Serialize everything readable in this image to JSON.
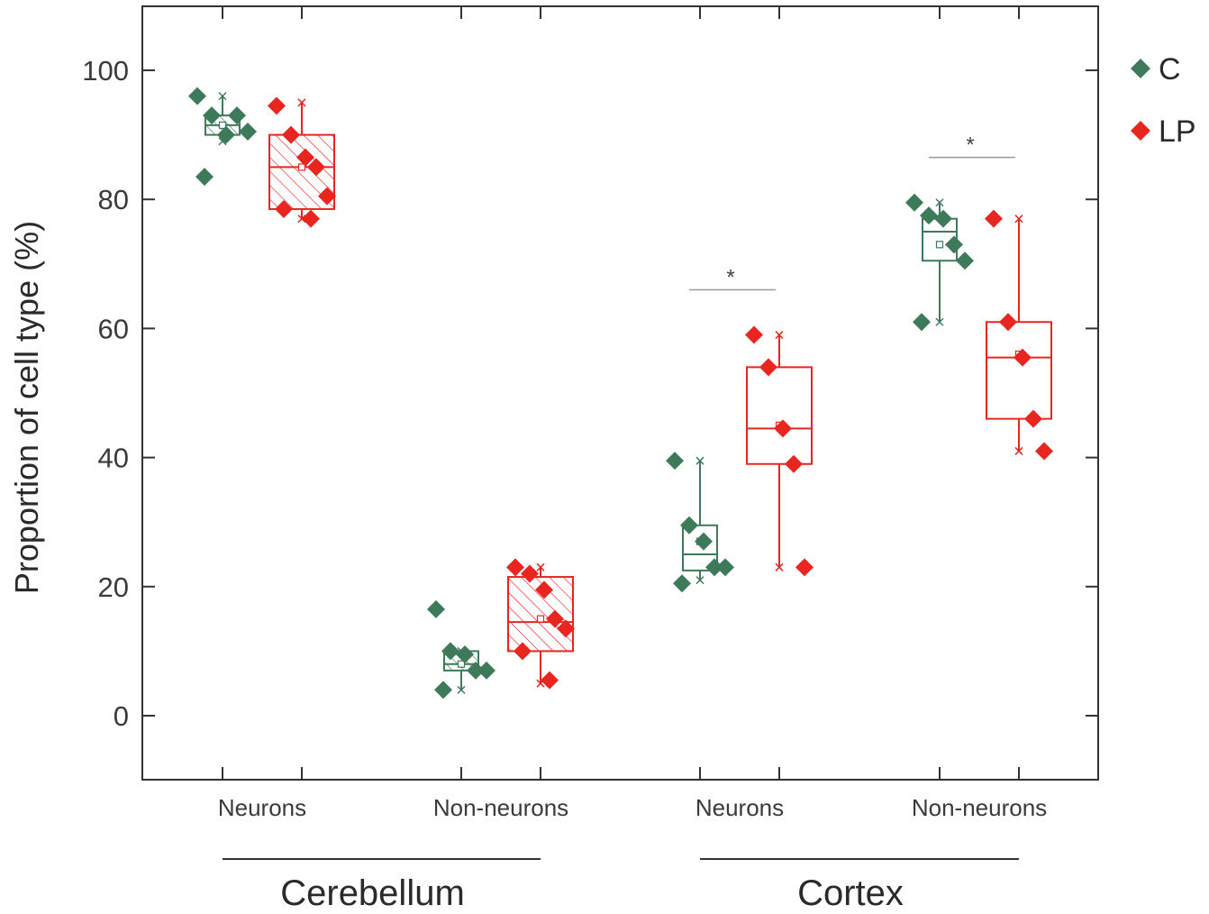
{
  "chart_data": {
    "type": "box",
    "ylabel": "Proportion of cell type (%)",
    "ylim": [
      -10,
      110
    ],
    "yticks": [
      0,
      20,
      40,
      60,
      80,
      100
    ],
    "categories": [
      "Neurons",
      "Non-neurons",
      "Neurons",
      "Non-neurons"
    ],
    "groups": [
      {
        "label": "Cerebellum",
        "categories": [
          0,
          1
        ]
      },
      {
        "label": "Cortex",
        "categories": [
          2,
          3
        ]
      }
    ],
    "legend_position": "top-right",
    "grid": false,
    "series": [
      {
        "name": "C",
        "color": "#3d7a59",
        "boxes": [
          {
            "category": 0,
            "hatched": true,
            "min": 89,
            "q1": 90,
            "median": 91.5,
            "q3": 93,
            "max": 96,
            "mean": 91.5,
            "points": [
              96,
              93,
              90,
              93,
              90.5,
              83.5
            ]
          },
          {
            "category": 1,
            "hatched": true,
            "min": 4,
            "q1": 7,
            "median": 8,
            "q3": 10,
            "max": 10,
            "mean": 8,
            "points": [
              16.5,
              10,
              9.5,
              7,
              7,
              4
            ]
          },
          {
            "category": 2,
            "hatched": false,
            "min": 21,
            "q1": 22.5,
            "median": 25,
            "q3": 29.5,
            "max": 39.5,
            "mean": 27,
            "points": [
              39.5,
              29.5,
              27,
              23,
              23,
              20.5
            ]
          },
          {
            "category": 3,
            "hatched": false,
            "min": 61,
            "q1": 70.5,
            "median": 75,
            "q3": 77,
            "max": 79.5,
            "mean": 73,
            "points": [
              79.5,
              77.5,
              77,
              73,
              70.5,
              61
            ]
          }
        ]
      },
      {
        "name": "LP",
        "color": "#e8251f",
        "boxes": [
          {
            "category": 0,
            "hatched": true,
            "min": 77,
            "q1": 78.5,
            "median": 85,
            "q3": 90,
            "max": 95,
            "mean": 85,
            "points": [
              94.5,
              90,
              86.5,
              85,
              80.5,
              78.5,
              77
            ]
          },
          {
            "category": 1,
            "hatched": true,
            "min": 5,
            "q1": 10,
            "median": 14.5,
            "q3": 21.5,
            "max": 23,
            "mean": 15,
            "points": [
              23,
              22,
              19.5,
              15,
              13.5,
              10,
              5.5
            ]
          },
          {
            "category": 2,
            "hatched": false,
            "min": 23,
            "q1": 39,
            "median": 44.5,
            "q3": 54,
            "max": 59,
            "mean": 45,
            "points": [
              59,
              54,
              44.5,
              39,
              23
            ]
          },
          {
            "category": 3,
            "hatched": false,
            "min": 41,
            "q1": 46,
            "median": 55.5,
            "q3": 61,
            "max": 77,
            "mean": 56,
            "points": [
              77,
              61,
              55.5,
              46,
              41
            ]
          }
        ]
      }
    ],
    "significance": [
      {
        "category": 2,
        "label": "*",
        "y": 66
      },
      {
        "category": 3,
        "label": "*",
        "y": 86.5
      }
    ]
  }
}
